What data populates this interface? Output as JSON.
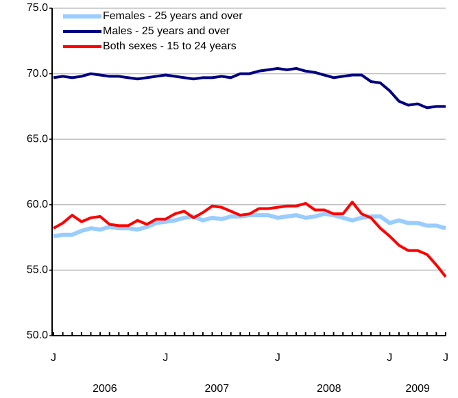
{
  "chart_data": {
    "type": "line",
    "categories": [
      "J",
      null,
      null,
      null,
      null,
      null,
      null,
      null,
      null,
      null,
      null,
      null,
      "J",
      null,
      null,
      null,
      null,
      null,
      null,
      null,
      null,
      null,
      null,
      null,
      "J",
      null,
      null,
      null,
      null,
      null,
      null,
      null,
      null,
      null,
      null,
      null,
      "J",
      null,
      null,
      null,
      null,
      null,
      "J"
    ],
    "year_labels": [
      "2006",
      "2007",
      "2008",
      "2009"
    ],
    "series": [
      {
        "name": "Females - 25 years and over",
        "color": "#99ccff",
        "width": 6,
        "values": [
          57.6,
          57.7,
          57.7,
          58.0,
          58.2,
          58.1,
          58.3,
          58.2,
          58.2,
          58.1,
          58.3,
          58.6,
          58.7,
          58.8,
          59.0,
          59.1,
          58.8,
          59.0,
          58.9,
          59.1,
          59.1,
          59.2,
          59.2,
          59.2,
          59.0,
          59.1,
          59.2,
          59.0,
          59.1,
          59.3,
          59.2,
          59.0,
          58.8,
          59.0,
          59.1,
          59.1,
          58.6,
          58.8,
          58.6,
          58.6,
          58.4,
          58.4,
          58.2
        ]
      },
      {
        "name": "Males - 25 years and over",
        "color": "#000080",
        "width": 4,
        "values": [
          69.7,
          69.8,
          69.7,
          69.8,
          70.0,
          69.9,
          69.8,
          69.8,
          69.7,
          69.6,
          69.7,
          69.8,
          69.9,
          69.8,
          69.7,
          69.6,
          69.7,
          69.7,
          69.8,
          69.7,
          70.0,
          70.0,
          70.2,
          70.3,
          70.4,
          70.3,
          70.4,
          70.2,
          70.1,
          69.9,
          69.7,
          69.8,
          69.9,
          69.9,
          69.4,
          69.3,
          68.7,
          67.9,
          67.6,
          67.7,
          67.4,
          67.5,
          67.5
        ]
      },
      {
        "name": "Both sexes - 15 to 24 years",
        "color": "#ff0000",
        "width": 4,
        "values": [
          58.2,
          58.6,
          59.2,
          58.7,
          59.0,
          59.1,
          58.5,
          58.4,
          58.4,
          58.8,
          58.5,
          58.9,
          58.9,
          59.3,
          59.5,
          59.0,
          59.4,
          59.9,
          59.8,
          59.5,
          59.2,
          59.3,
          59.7,
          59.7,
          59.8,
          59.9,
          59.9,
          60.1,
          59.6,
          59.6,
          59.3,
          59.3,
          60.2,
          59.3,
          59.0,
          58.2,
          57.6,
          56.9,
          56.5,
          56.5,
          56.2,
          55.4,
          54.5
        ]
      }
    ],
    "ylim": [
      50,
      75
    ],
    "yticks": [
      {
        "value": 50,
        "label": "50.0"
      },
      {
        "value": 55,
        "label": "55.0"
      },
      {
        "value": 60,
        "label": "60.0"
      },
      {
        "value": 65,
        "label": "65.0"
      },
      {
        "value": 70,
        "label": "70.0"
      },
      {
        "value": 75,
        "label": "75.0"
      }
    ],
    "grid": true,
    "legend": "top-left"
  }
}
